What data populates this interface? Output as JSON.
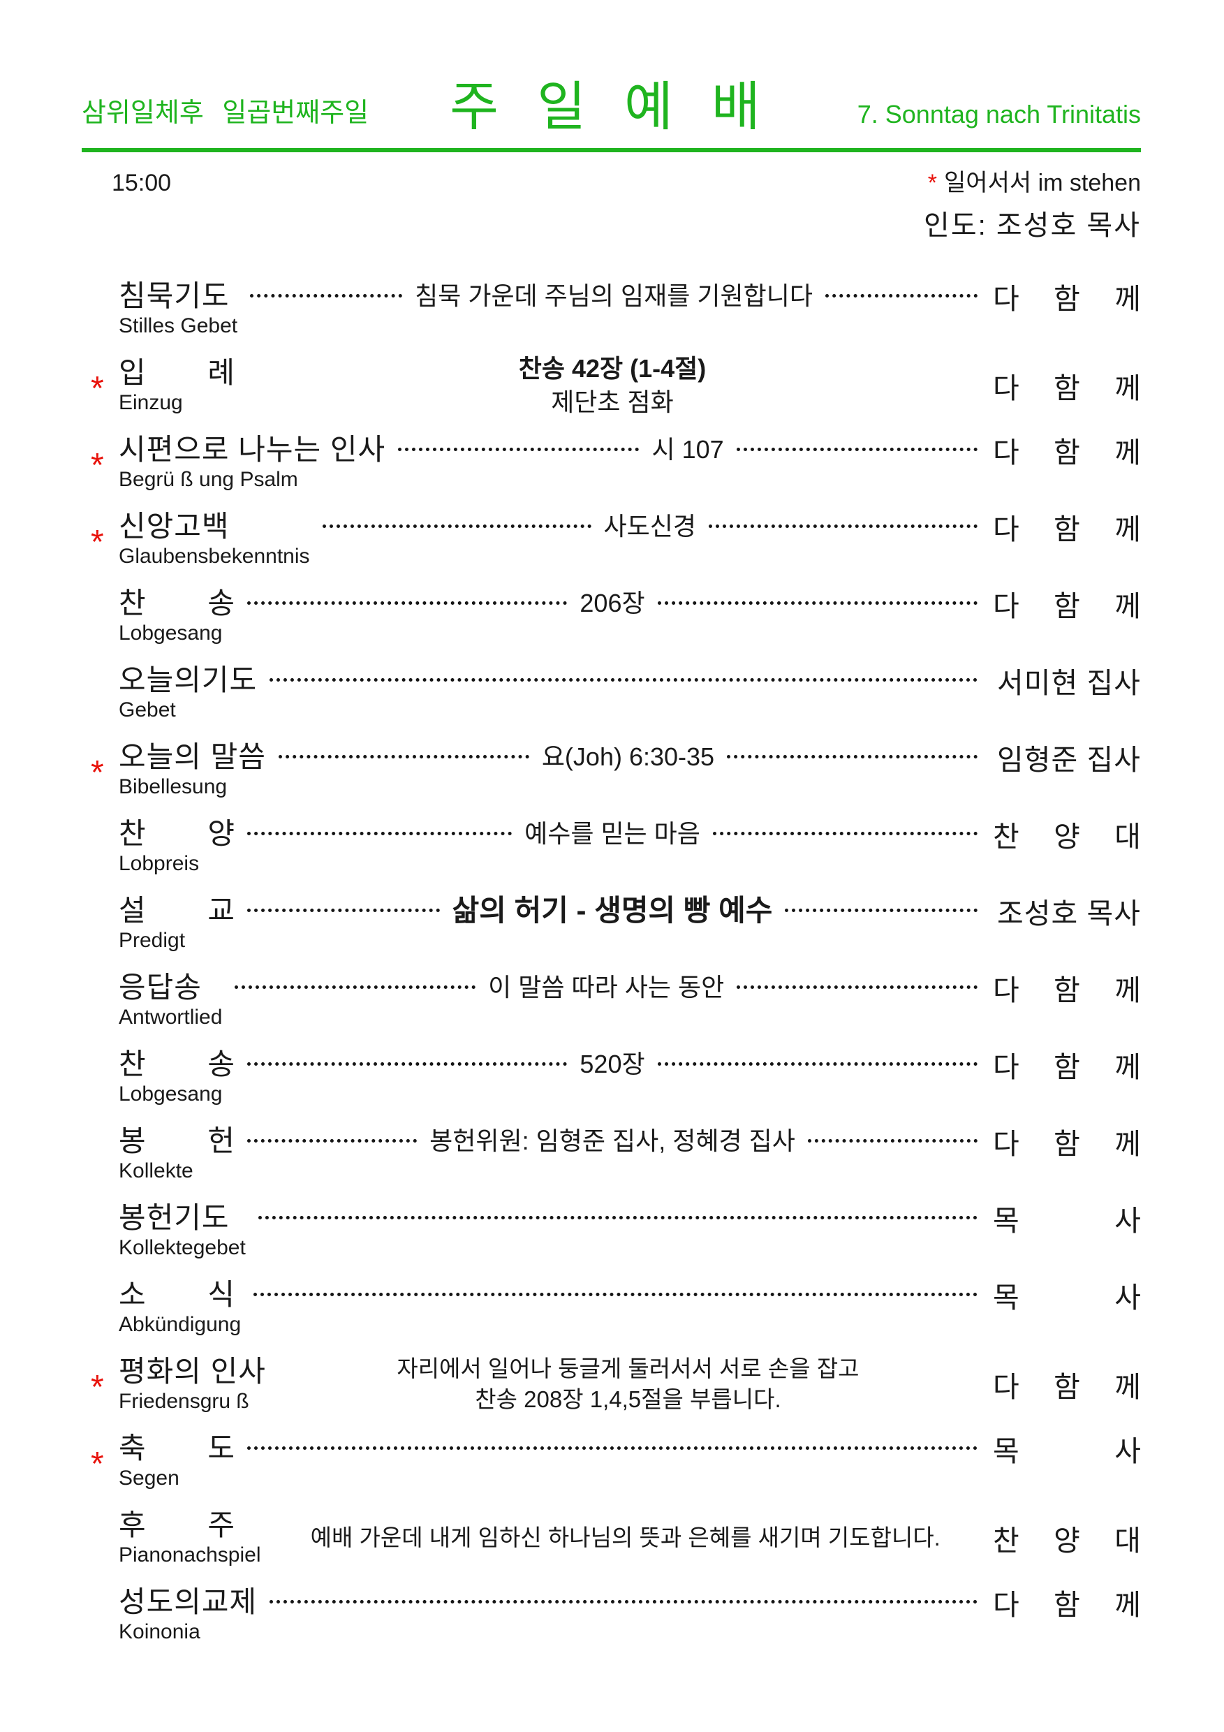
{
  "colors": {
    "green": "#1FB41F",
    "red": "#E8120B",
    "ink": "#1a1a1a"
  },
  "header": {
    "left": "삼위일체후 일곱번째주일",
    "title": "주 일 예 배",
    "right": "7. Sonntag nach Trinitatis"
  },
  "info": {
    "time": "15:00",
    "note_mark": "*",
    "note": "일어서서 im stehen",
    "leader": "인도: 조성호 목사"
  },
  "items": [
    {
      "ast": false,
      "title": "침묵기도",
      "title_spread": false,
      "subtitle": "Stilles Gebet",
      "mid": {
        "type": "dotted",
        "text": "침묵 가운데 주님의 임재를 기원합니다"
      },
      "right": {
        "text": "다 함 께",
        "spread": true
      }
    },
    {
      "ast": true,
      "title": "입 례",
      "title_spread": true,
      "subtitle": "Einzug",
      "mid": {
        "type": "lines",
        "lines": [
          {
            "text": "찬송 42장 (1-4절)",
            "bold": true
          },
          {
            "text": "제단초 점화"
          }
        ]
      },
      "right": {
        "text": "다 함 께",
        "spread": true
      }
    },
    {
      "ast": true,
      "title": "시편으로 나누는 인사",
      "title_spread": false,
      "subtitle": "Begrü ß ung Psalm",
      "mid": {
        "type": "dotted",
        "text": "시 107"
      },
      "right": {
        "text": "다 함 께",
        "spread": true
      }
    },
    {
      "ast": true,
      "title": "신앙고백",
      "title_spread": false,
      "subtitle": "Glaubensbekenntnis",
      "mid": {
        "type": "dotted",
        "text": "사도신경"
      },
      "right": {
        "text": "다 함 께",
        "spread": true
      }
    },
    {
      "ast": false,
      "title": "찬 송",
      "title_spread": true,
      "subtitle": "Lobgesang",
      "mid": {
        "type": "dotted",
        "text": "206장"
      },
      "right": {
        "text": "다 함 께",
        "spread": true
      }
    },
    {
      "ast": false,
      "title": "오늘의기도",
      "title_spread": false,
      "subtitle": "Gebet",
      "mid": {
        "type": "dotted",
        "text": ""
      },
      "right": {
        "text": "서미현 집사",
        "spread": false
      }
    },
    {
      "ast": true,
      "title": "오늘의 말씀",
      "title_spread": false,
      "subtitle": "Bibellesung",
      "mid": {
        "type": "dotted",
        "text": "요(Joh) 6:30-35"
      },
      "right": {
        "text": "임형준 집사",
        "spread": false
      }
    },
    {
      "ast": false,
      "title": "찬 양",
      "title_spread": true,
      "subtitle": "Lobpreis",
      "mid": {
        "type": "dotted",
        "text": "예수를 믿는 마음"
      },
      "right": {
        "text": "찬 양 대",
        "spread": true
      }
    },
    {
      "ast": false,
      "title": "설 교",
      "title_spread": true,
      "subtitle": "Predigt",
      "mid": {
        "type": "dotted",
        "text": "삶의 허기 - 생명의 빵 예수",
        "bold": true,
        "large": true
      },
      "right": {
        "text": "조성호 목사",
        "spread": false
      }
    },
    {
      "ast": false,
      "title": "응답송",
      "title_spread": false,
      "subtitle": "Antwortlied",
      "mid": {
        "type": "dotted",
        "text": "이 말씀 따라 사는 동안"
      },
      "right": {
        "text": "다 함 께",
        "spread": true
      }
    },
    {
      "ast": false,
      "title": "찬 송",
      "title_spread": true,
      "subtitle": "Lobgesang",
      "mid": {
        "type": "dotted",
        "text": "520장"
      },
      "right": {
        "text": "다 함 께",
        "spread": true
      }
    },
    {
      "ast": false,
      "title": "봉 헌",
      "title_spread": true,
      "subtitle": "Kollekte",
      "mid": {
        "type": "dotted",
        "text": "봉헌위원: 임형준 집사, 정혜경 집사"
      },
      "right": {
        "text": "다 함 께",
        "spread": true
      }
    },
    {
      "ast": false,
      "title": "봉헌기도",
      "title_spread": false,
      "subtitle": "Kollektegebet",
      "mid": {
        "type": "dotted",
        "text": ""
      },
      "right": {
        "text": "목 사",
        "spread": true
      }
    },
    {
      "ast": false,
      "title": "소 식",
      "title_spread": true,
      "subtitle": "Abkündigung",
      "mid": {
        "type": "dotted",
        "text": ""
      },
      "right": {
        "text": "목 사",
        "spread": true
      }
    },
    {
      "ast": true,
      "title": "평화의 인사",
      "title_spread": false,
      "subtitle": "Friedensgru ß",
      "mid": {
        "type": "lines",
        "lines": [
          {
            "text": "자리에서 일어나 둥글게 둘러서서 서로 손을 잡고",
            "small": true
          },
          {
            "text": "찬송 208장 1,4,5절을 부릅니다.",
            "small": true
          }
        ]
      },
      "right": {
        "text": "다 함 께",
        "spread": true
      }
    },
    {
      "ast": true,
      "title": "축 도",
      "title_spread": true,
      "subtitle": "Segen",
      "mid": {
        "type": "dotted",
        "text": ""
      },
      "right": {
        "text": "목 사",
        "spread": true
      }
    },
    {
      "ast": false,
      "title": "후 주",
      "title_spread": true,
      "subtitle": "Pianonachspiel",
      "mid": {
        "type": "lines",
        "lines": [
          {
            "text": "예배 가운데 내게 임하신 하나님의 뜻과 은혜를 새기며 기도합니다.",
            "small": true
          }
        ]
      },
      "right": {
        "text": "찬 양 대",
        "spread": true
      }
    },
    {
      "ast": false,
      "title": "성도의교제",
      "title_spread": false,
      "subtitle": "Koinonia",
      "mid": {
        "type": "dotted",
        "text": ""
      },
      "right": {
        "text": "다 함 께",
        "spread": true
      }
    }
  ]
}
